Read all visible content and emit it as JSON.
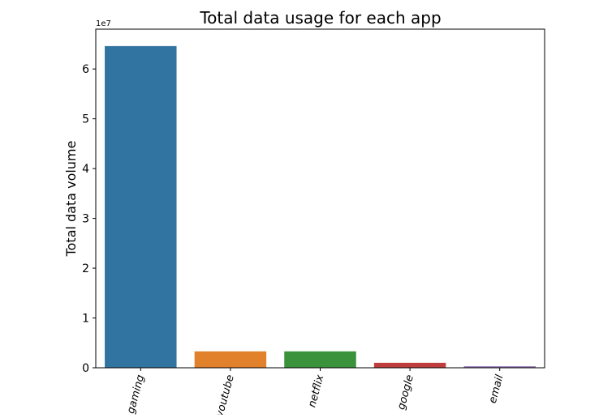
{
  "chart_data": {
    "type": "bar",
    "title": "Total data usage for each app",
    "xlabel": "",
    "ylabel": "Total data volume",
    "y_offset_label": "1e7",
    "categories": [
      "gaming",
      "youtube",
      "netflix",
      "google",
      "email"
    ],
    "values": [
      64600000,
      3300000,
      3300000,
      1000000,
      300000
    ],
    "colors": [
      "#3274a1",
      "#e1812c",
      "#3a923a",
      "#c03d3e",
      "#9372b2"
    ],
    "ylim": [
      0,
      68000000
    ],
    "y_ticks": [
      0,
      10000000,
      20000000,
      30000000,
      40000000,
      50000000,
      60000000
    ],
    "y_tick_labels": [
      "0",
      "1",
      "2",
      "3",
      "4",
      "5",
      "6"
    ],
    "x_tick_rotation_deg": 75,
    "grid": false,
    "legend": "none"
  }
}
